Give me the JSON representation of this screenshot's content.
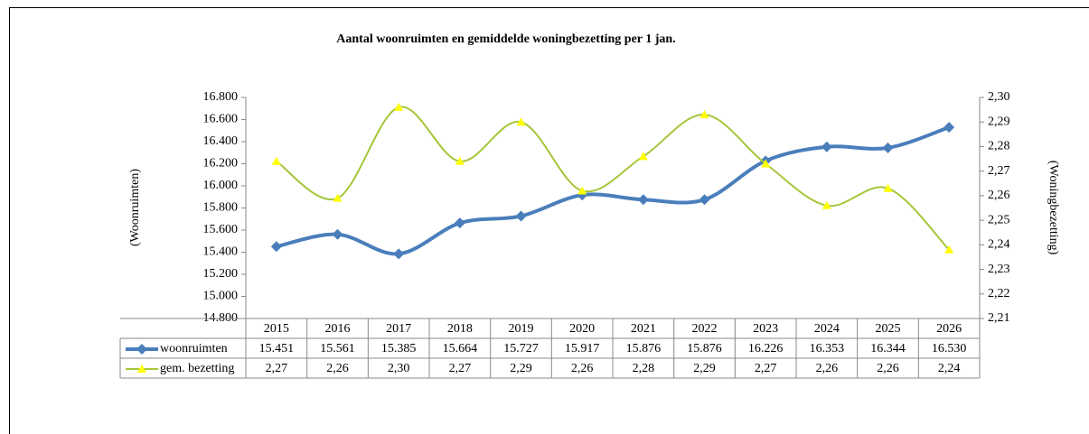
{
  "chart_data": {
    "type": "line",
    "title": "Aantal woonruimten en gemiddelde woningbezetting per 1 jan.",
    "ylabel": "(Woonruimten)",
    "y2label": "(Woningbezetting)",
    "categories": [
      "2015",
      "2016",
      "2017",
      "2018",
      "2019",
      "2020",
      "2021",
      "2022",
      "2023",
      "2024",
      "2025",
      "2026"
    ],
    "series": [
      {
        "name": "woonruimten",
        "color": "#4a7ebb",
        "marker": "diamond",
        "values": [
          15451,
          15561,
          15385,
          15664,
          15727,
          15917,
          15876,
          15876,
          16226,
          16353,
          16344,
          16530
        ],
        "value_labels": [
          "15.451",
          "15.561",
          "15.385",
          "15.664",
          "15.727",
          "15.917",
          "15.876",
          "15.876",
          "16.226",
          "16.353",
          "16.344",
          "16.530"
        ]
      },
      {
        "name": "gem. bezetting",
        "color": "#a4c639",
        "marker_color": "#ffff00",
        "marker": "triangle",
        "axis": "y2",
        "values": [
          2.274,
          2.259,
          2.296,
          2.274,
          2.29,
          2.262,
          2.276,
          2.293,
          2.273,
          2.256,
          2.263,
          2.238
        ],
        "value_labels": [
          "2,27",
          "2,26",
          "2,30",
          "2,27",
          "2,29",
          "2,26",
          "2,28",
          "2,29",
          "2,27",
          "2,26",
          "2,26",
          "2,24"
        ]
      }
    ],
    "ylim": [
      14800,
      16800
    ],
    "yticks": [
      {
        "value": 14800,
        "label": "14.800"
      },
      {
        "value": 15000,
        "label": "15.000"
      },
      {
        "value": 15200,
        "label": "15.200"
      },
      {
        "value": 15400,
        "label": "15.400"
      },
      {
        "value": 15600,
        "label": "15.600"
      },
      {
        "value": 15800,
        "label": "15.800"
      },
      {
        "value": 16000,
        "label": "16.000"
      },
      {
        "value": 16200,
        "label": "16.200"
      },
      {
        "value": 16400,
        "label": "16.400"
      },
      {
        "value": 16600,
        "label": "16.600"
      },
      {
        "value": 16800,
        "label": "16.800"
      }
    ],
    "y2lim": [
      2.21,
      2.3
    ],
    "y2ticks": [
      {
        "value": 2.21,
        "label": "2,21"
      },
      {
        "value": 2.22,
        "label": "2,22"
      },
      {
        "value": 2.23,
        "label": "2,23"
      },
      {
        "value": 2.24,
        "label": "2,24"
      },
      {
        "value": 2.25,
        "label": "2,25"
      },
      {
        "value": 2.26,
        "label": "2,26"
      },
      {
        "value": 2.27,
        "label": "2,27"
      },
      {
        "value": 2.28,
        "label": "2,28"
      },
      {
        "value": 2.29,
        "label": "2,29"
      },
      {
        "value": 2.3,
        "label": "2,30"
      }
    ],
    "grid": false,
    "smooth": true
  }
}
